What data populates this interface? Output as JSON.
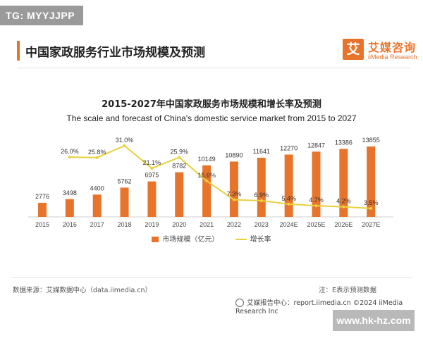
{
  "tag": "TG: MYYJJPP",
  "header": {
    "title": "中国家政服务行业市场规模及预测",
    "logo_char": "艾",
    "logo_cn": "艾媒咨询",
    "logo_en": "iiMedia Research"
  },
  "colors": {
    "accent": "#e8742c",
    "line": "#e9d03c"
  },
  "chart_data": {
    "type": "bar",
    "title": "2015-2027年中国家政服务市场规模和增长率及预测",
    "subtitle": "The scale and forecast of China's domestic service market from 2015 to 2027",
    "categories": [
      "2015",
      "2016",
      "2017",
      "2018",
      "2019",
      "2020",
      "2021",
      "2022",
      "2023",
      "2024E",
      "2025E",
      "2026E",
      "2027E"
    ],
    "series": [
      {
        "name": "市场规模（亿元）",
        "type": "bar",
        "values": [
          2776,
          3498,
          4400,
          5762,
          6975,
          8782,
          10149,
          10890,
          11641,
          12270,
          12847,
          13386,
          13855
        ]
      },
      {
        "name": "增长率",
        "type": "line",
        "values": [
          null,
          26.0,
          25.8,
          31.0,
          21.1,
          25.9,
          15.6,
          7.3,
          6.9,
          5.4,
          4.7,
          4.2,
          3.5
        ],
        "labels": [
          "",
          "26.0%",
          "25.8%",
          "31.0%",
          "21.1%",
          "25.9%",
          "15.6%",
          "7.3%",
          "6.9%",
          "5.4%",
          "4.7%",
          "4.2%",
          "3.5%"
        ]
      }
    ],
    "legend_position": "bottom",
    "grid": false
  },
  "footer": {
    "source": "数据来源：艾媒数据中心（data.iimedia.cn）",
    "note": "注：E表示预测数据",
    "credit": "艾媒报告中心：report.iimedia.cn    ©2024  iiMedia Research  Inc",
    "watermark": "www.hk-hz.com"
  }
}
